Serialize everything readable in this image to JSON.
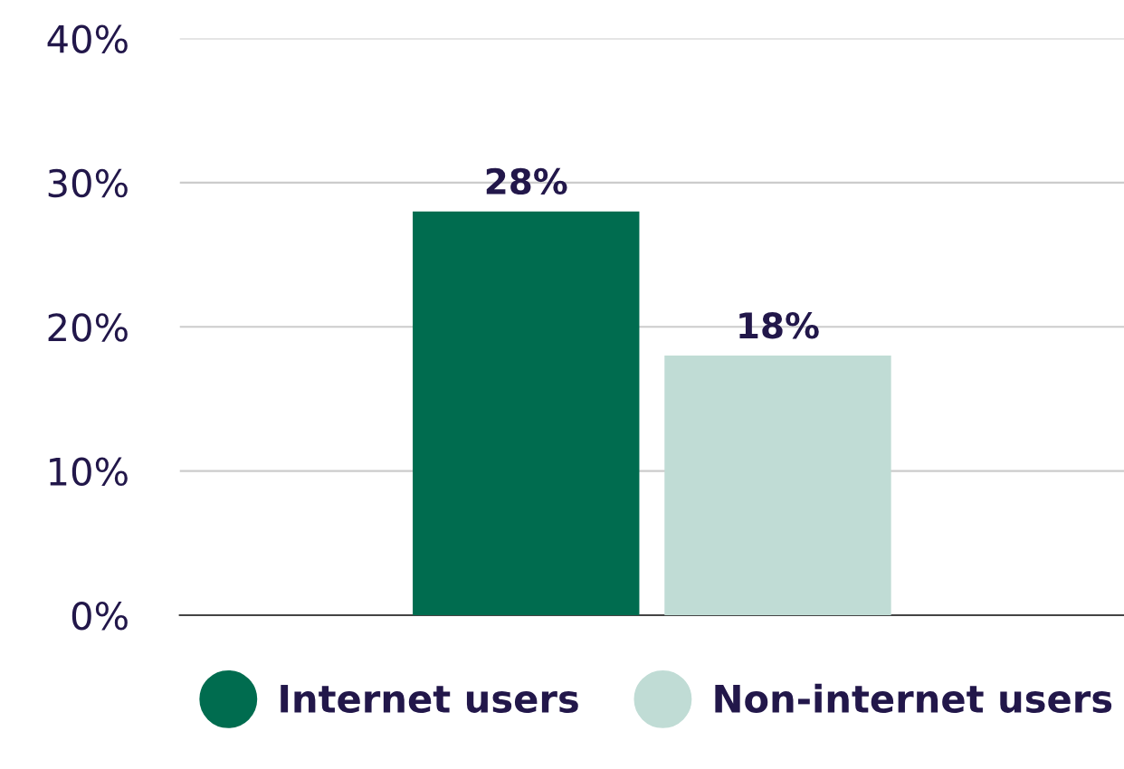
{
  "chart_data": {
    "type": "bar",
    "categories": [
      null
    ],
    "series": [
      {
        "name": "Internet users",
        "color": "#006c4f",
        "values": [
          28
        ],
        "value_labels": [
          "28%"
        ]
      },
      {
        "name": "Non-internet users",
        "color": "#c0dcd5",
        "values": [
          18
        ],
        "value_labels": [
          "18%"
        ]
      }
    ],
    "ylim": [
      0,
      40
    ],
    "yticks": [
      {
        "value": 0,
        "label": "0%"
      },
      {
        "value": 10,
        "label": "10%"
      },
      {
        "value": 20,
        "label": "20%"
      },
      {
        "value": 30,
        "label": "30%"
      },
      {
        "value": 40,
        "label": "40%"
      }
    ],
    "grid": "y",
    "legend": "bottom",
    "marker": "circle"
  }
}
